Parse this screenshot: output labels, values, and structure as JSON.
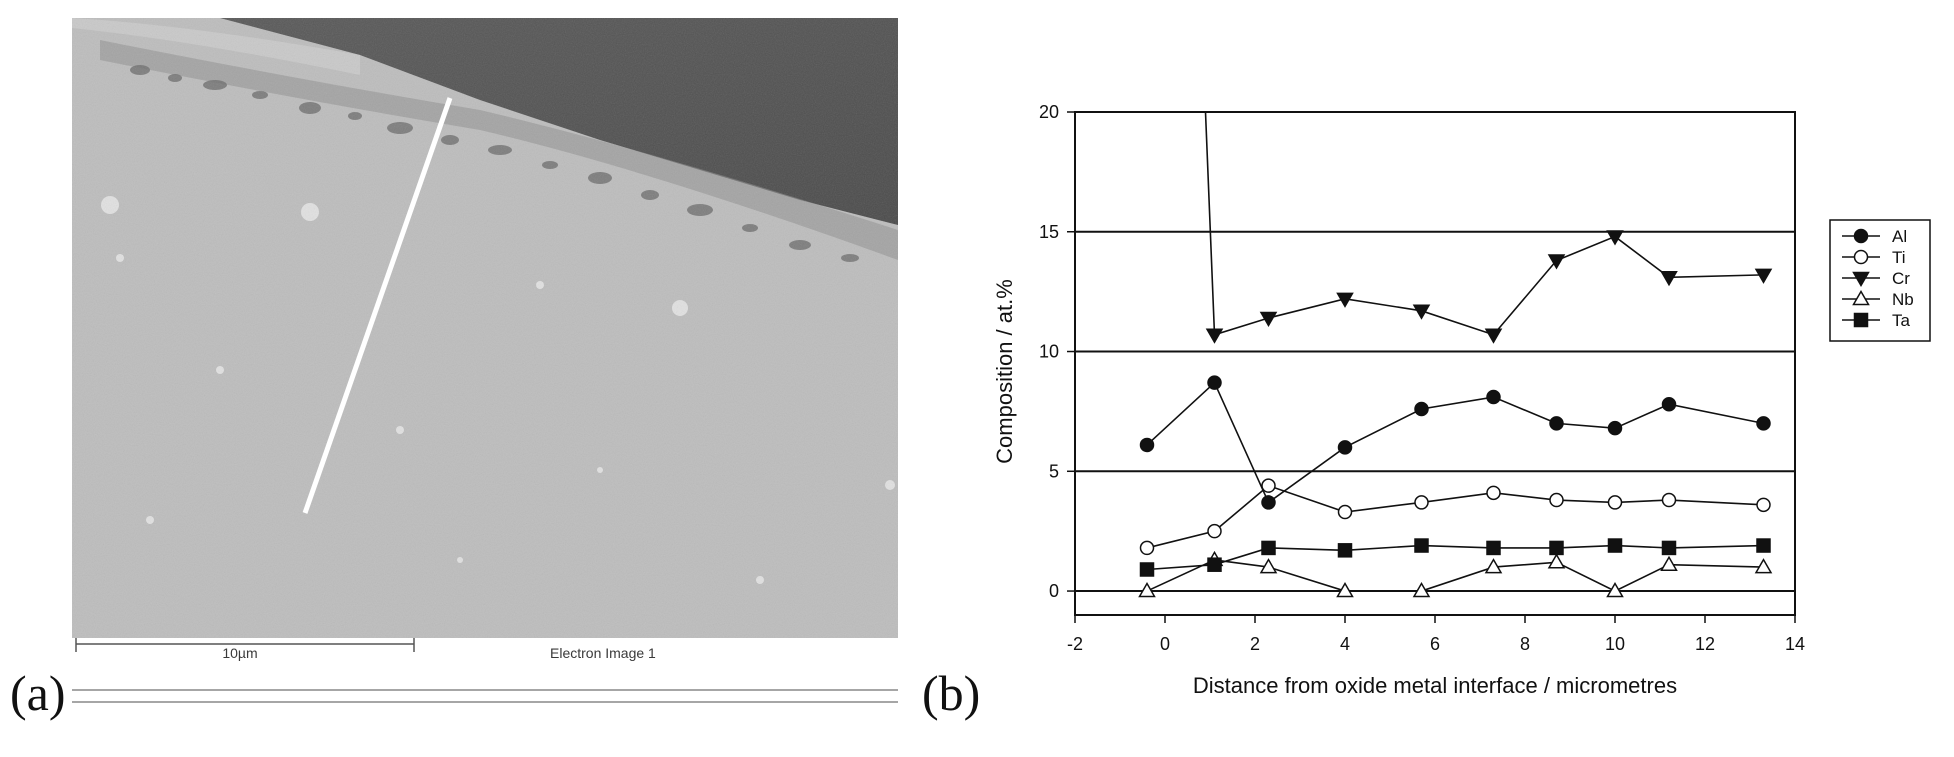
{
  "panels": {
    "a": {
      "letter": "(a)",
      "scale_bar_label": "10µm",
      "image_label": "Electron Image 1"
    },
    "b": {
      "letter": "(b)"
    }
  },
  "chart_data": {
    "type": "line",
    "title": "",
    "xlabel": "Distance from oxide metal interface / micrometres",
    "ylabel": "Composition / at.%",
    "xlim": [
      -2,
      14
    ],
    "ylim": [
      -1,
      20
    ],
    "xticks": [
      -2,
      0,
      2,
      4,
      6,
      8,
      10,
      12,
      14
    ],
    "yticks": [
      0,
      5,
      10,
      15,
      20
    ],
    "grid": "horizontal at 0, 5, 10, 15",
    "legend_position": "right",
    "x": [
      -0.4,
      1.1,
      2.3,
      4.0,
      5.7,
      7.3,
      8.7,
      10.0,
      11.2,
      13.3
    ],
    "series": [
      {
        "name": "Al",
        "marker": "filled-circle",
        "values": [
          6.1,
          8.7,
          3.7,
          6.0,
          7.6,
          8.1,
          7.0,
          6.8,
          7.8,
          7.0
        ]
      },
      {
        "name": "Ti",
        "marker": "open-circle",
        "values": [
          1.8,
          2.5,
          4.4,
          3.3,
          3.7,
          4.1,
          3.8,
          3.7,
          3.8,
          3.6
        ]
      },
      {
        "name": "Cr",
        "marker": "filled-triangle-down",
        "values": [
          11.4,
          12.2,
          11.7,
          10.7,
          13.8,
          14.8,
          13.1,
          13.2
        ],
        "x": [
          2.3,
          4.0,
          5.7,
          7.3,
          8.7,
          10.0,
          11.2,
          13.3
        ],
        "lead_in": [
          [
            0.9,
            20
          ],
          [
            1.1,
            10.7
          ]
        ]
      },
      {
        "name": "Nb",
        "marker": "open-triangle-up",
        "values": [
          0.0,
          1.3,
          1.0,
          0.0,
          0.0,
          1.0,
          1.2,
          0.0,
          1.1,
          1.0
        ]
      },
      {
        "name": "Ta",
        "marker": "filled-square",
        "values": [
          0.9,
          1.1,
          1.8,
          1.7,
          1.9,
          1.8,
          1.8,
          1.9,
          1.8,
          1.9
        ]
      }
    ]
  }
}
